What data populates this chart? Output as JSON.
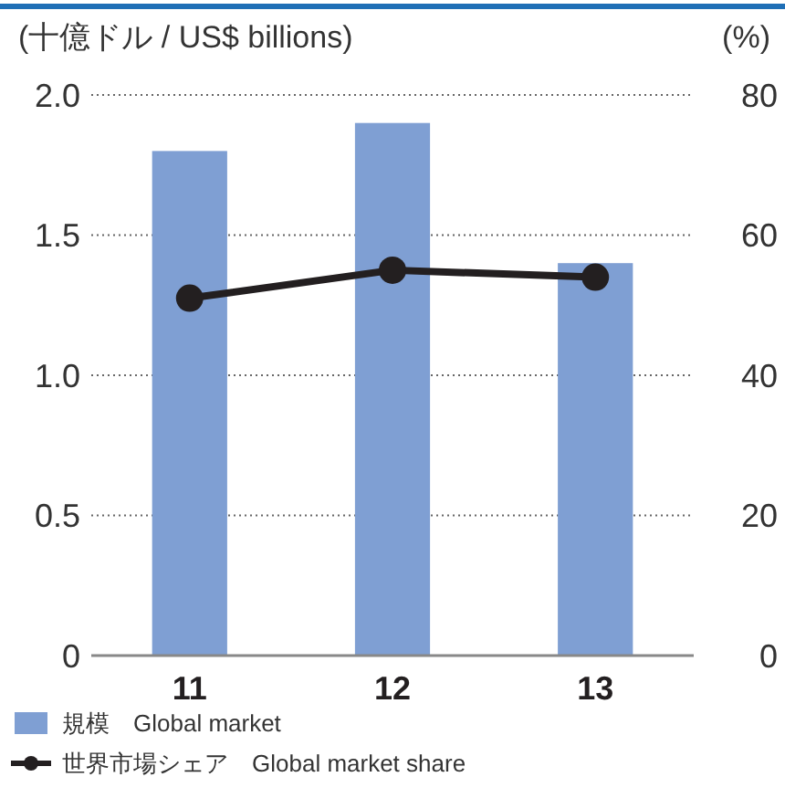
{
  "chart_data": {
    "type": "bar",
    "ylabel": "(十億ドル / US$ billions)",
    "y2label": "(%)",
    "categories": [
      "11",
      "12",
      "13"
    ],
    "series": [
      {
        "name": "規模　Global market",
        "color": "#7f9fd3",
        "values": [
          1.8,
          1.9,
          1.4
        ]
      },
      {
        "name": "世界市場シェア　Global market share",
        "type": "line",
        "axis": "y2",
        "color": "#231f20",
        "values": [
          51,
          55,
          54
        ]
      }
    ],
    "ylim": [
      0,
      2
    ],
    "yticks": [
      {
        "value": 0,
        "label": "0"
      },
      {
        "value": 0.5,
        "label": "0.5"
      },
      {
        "value": 1,
        "label": "1.0"
      },
      {
        "value": 1.5,
        "label": "1.5"
      },
      {
        "value": 2,
        "label": "2.0"
      }
    ],
    "y2lim": [
      0,
      80
    ],
    "y2ticks": [
      0,
      20,
      40,
      60,
      80
    ],
    "grid": "y",
    "legend": "bottom",
    "marker": "circle"
  }
}
